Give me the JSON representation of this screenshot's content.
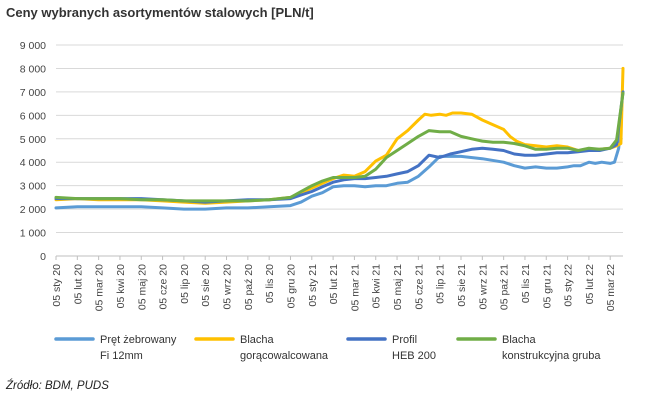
{
  "title": "Ceny wybranych asortymentów stalowych [PLN/t]",
  "source": "Źródło: BDM, PUDS",
  "chart_data": {
    "type": "line",
    "title": "Ceny wybranych asortymentów stalowych [PLN/t]",
    "ylim": [
      0,
      9000
    ],
    "yticks": [
      0,
      1000,
      2000,
      3000,
      4000,
      5000,
      6000,
      7000,
      8000,
      9000
    ],
    "ytick_labels": [
      "0",
      "1 000",
      "2 000",
      "3 000",
      "4 000",
      "5 000",
      "6 000",
      "7 000",
      "8 000",
      "9 000"
    ],
    "xlim": [
      0,
      26.6
    ],
    "categories": [
      "05 sty 20",
      "05 lut 20",
      "05 mar 20",
      "05 kwi 20",
      "05 maj 20",
      "05 cze 20",
      "05 lip 20",
      "05 sie 20",
      "05 wrz 20",
      "05 paź 20",
      "05 lis 20",
      "05 gru 20",
      "05 sty 21",
      "05 lut 21",
      "05 mar 21",
      "05 kwi 21",
      "05 maj 21",
      "05 cze 21",
      "05 lip 21",
      "05 sie 21",
      "05 wrz 21",
      "05 paź 21",
      "05 lis 21",
      "05 gru 21",
      "05 sty 22",
      "05 lut 22",
      "05 mar 22"
    ],
    "legend_position": "bottom",
    "grid": true,
    "series": [
      {
        "name": "Pręt żebrowany Fi 12mm",
        "legend_lines": [
          "Pręt żebrowany",
          "Fi 12mm"
        ],
        "color": "#5b9bd5",
        "x": [
          0,
          1,
          2,
          3,
          4,
          5,
          6,
          7,
          8,
          9,
          10,
          11,
          11.5,
          12,
          12.5,
          13,
          13.5,
          14,
          14.5,
          15,
          15.5,
          16,
          16.5,
          17,
          17.5,
          18,
          19,
          20,
          21,
          21.5,
          22,
          22.5,
          23,
          23.5,
          24,
          24.3,
          24.6,
          25,
          25.3,
          25.6,
          26,
          26.2,
          26.4,
          26.5
        ],
        "y": [
          2050,
          2100,
          2100,
          2100,
          2100,
          2050,
          2000,
          2000,
          2050,
          2050,
          2100,
          2150,
          2300,
          2550,
          2700,
          2950,
          3000,
          3000,
          2950,
          3000,
          3000,
          3100,
          3150,
          3400,
          3800,
          4250,
          4250,
          4150,
          4000,
          3850,
          3750,
          3800,
          3750,
          3750,
          3800,
          3850,
          3850,
          4000,
          3950,
          4000,
          3950,
          4000,
          4600,
          5700
        ]
      },
      {
        "name": "Blacha gorącowalcowana",
        "legend_lines": [
          "Blacha",
          "gorącowalcowana"
        ],
        "color": "#ffc000",
        "x": [
          0,
          1,
          2,
          3,
          4,
          5,
          6,
          7,
          8,
          9,
          10,
          11,
          11.5,
          12,
          12.5,
          13,
          13.5,
          14,
          14.5,
          15,
          15.5,
          16,
          16.5,
          17,
          17.3,
          17.6,
          18,
          18.3,
          18.6,
          19,
          19.5,
          20,
          20.5,
          21,
          21.3,
          21.6,
          22,
          22.5,
          23,
          23.5,
          24,
          24.5,
          25,
          25.5,
          26,
          26.3,
          26.5,
          26.6
        ],
        "y": [
          2400,
          2450,
          2400,
          2400,
          2400,
          2350,
          2300,
          2250,
          2300,
          2350,
          2400,
          2500,
          2700,
          2900,
          3100,
          3300,
          3450,
          3400,
          3600,
          4050,
          4300,
          5000,
          5350,
          5800,
          6050,
          6000,
          6050,
          6000,
          6100,
          6100,
          6050,
          5800,
          5600,
          5400,
          5100,
          4900,
          4750,
          4700,
          4650,
          4700,
          4650,
          4500,
          4500,
          4550,
          4600,
          4700,
          4800,
          8000
        ]
      },
      {
        "name": "Profil HEB 200",
        "legend_lines": [
          "Profil",
          "HEB 200"
        ],
        "color": "#4472c4",
        "x": [
          0,
          1,
          2,
          3,
          4,
          5,
          6,
          7,
          8,
          9,
          10,
          11,
          11.5,
          12,
          12.5,
          13,
          13.5,
          14,
          14.5,
          15,
          15.5,
          16,
          16.5,
          17,
          17.5,
          18,
          18.5,
          19,
          19.5,
          20,
          20.5,
          21,
          21.5,
          22,
          22.5,
          23,
          23.5,
          24,
          24.5,
          25,
          25.5,
          26,
          26.3,
          26.6
        ],
        "y": [
          2450,
          2450,
          2450,
          2450,
          2450,
          2400,
          2350,
          2300,
          2350,
          2400,
          2400,
          2450,
          2600,
          2750,
          2950,
          3150,
          3250,
          3300,
          3300,
          3350,
          3400,
          3500,
          3600,
          3850,
          4300,
          4200,
          4350,
          4450,
          4550,
          4600,
          4550,
          4500,
          4350,
          4300,
          4300,
          4350,
          4400,
          4400,
          4450,
          4500,
          4500,
          4600,
          4750,
          7000
        ]
      },
      {
        "name": "Blacha konstrukcyjna gruba",
        "legend_lines": [
          "Blacha",
          "konstrukcyjna gruba"
        ],
        "color": "#70ad47",
        "x": [
          0,
          1,
          2,
          3,
          4,
          5,
          6,
          7,
          8,
          9,
          10,
          11,
          11.5,
          12,
          12.5,
          13,
          13.5,
          14,
          14.5,
          15,
          15.5,
          16,
          16.5,
          17,
          17.5,
          18,
          18.5,
          19,
          19.5,
          20,
          20.5,
          21,
          21.5,
          22,
          22.5,
          23,
          23.5,
          24,
          24.5,
          25,
          25.5,
          26,
          26.3,
          26.6
        ],
        "y": [
          2500,
          2450,
          2450,
          2450,
          2400,
          2400,
          2350,
          2350,
          2350,
          2350,
          2400,
          2500,
          2750,
          3000,
          3200,
          3350,
          3350,
          3350,
          3400,
          3700,
          4200,
          4500,
          4800,
          5100,
          5350,
          5300,
          5300,
          5100,
          5000,
          4900,
          4850,
          4850,
          4800,
          4700,
          4550,
          4550,
          4600,
          4600,
          4500,
          4600,
          4550,
          4600,
          4950,
          6950
        ]
      }
    ]
  }
}
